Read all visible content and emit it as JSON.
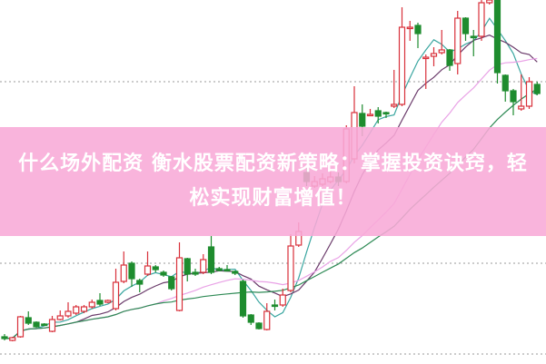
{
  "title": "什么场外配资 衡水股票配资新策略：掌握投资诀窍，轻松实现财富增值！",
  "chart_data": {
    "type": "candlestick",
    "grid": "dotted horizontal",
    "colors": {
      "up": "#d8303a",
      "down": "#1e8c2e",
      "ma5": "#3aa6a0",
      "ma10": "#6a3a6a",
      "ma20": "#e9a2e6",
      "ma30": "#2e8a55"
    },
    "moving_averages": [
      5,
      10,
      20,
      30
    ],
    "ohlc": [
      [
        29,
        27,
        32,
        25
      ],
      [
        25,
        28,
        29,
        24
      ],
      [
        29,
        51,
        52,
        28
      ],
      [
        50,
        44,
        57,
        42
      ],
      [
        45,
        40,
        46,
        39
      ],
      [
        43,
        42,
        44,
        41
      ],
      [
        35,
        48,
        52,
        34
      ],
      [
        48,
        52,
        58,
        47
      ],
      [
        52,
        57,
        67,
        50
      ],
      [
        55,
        62,
        64,
        53
      ],
      [
        57,
        62,
        64,
        55
      ],
      [
        62,
        67,
        70,
        60
      ],
      [
        69,
        65,
        77,
        63
      ],
      [
        67,
        69,
        70,
        66
      ],
      [
        60,
        89,
        104,
        58
      ],
      [
        90,
        108,
        123,
        88
      ],
      [
        110,
        93,
        112,
        84
      ],
      [
        91,
        87,
        93,
        78
      ],
      [
        98,
        107,
        123,
        96
      ],
      [
        106,
        103,
        108,
        100
      ],
      [
        100,
        97,
        102,
        95
      ],
      [
        95,
        82,
        96,
        80
      ],
      [
        58,
        116,
        133,
        57
      ],
      [
        115,
        98,
        116,
        90
      ],
      [
        100,
        98,
        104,
        96
      ],
      [
        100,
        114,
        120,
        98
      ],
      [
        128,
        100,
        140,
        98
      ],
      [
        104,
        102,
        106,
        101
      ],
      [
        103,
        102,
        108,
        101
      ],
      [
        101,
        99,
        102,
        97
      ],
      [
        90,
        52,
        92,
        50
      ],
      [
        53,
        45,
        54,
        42
      ],
      [
        44,
        38,
        45,
        37
      ],
      [
        37,
        57,
        66,
        36
      ],
      [
        64,
        63,
        70,
        58
      ],
      [
        64,
        75,
        82,
        62
      ],
      [
        80,
        129,
        142,
        78
      ],
      [
        130,
        145,
        155,
        128
      ],
      [
        210,
        200,
        215,
        195
      ],
      [
        195,
        200,
        206,
        193
      ],
      [
        197,
        203,
        209,
        195
      ],
      [
        200,
        205,
        212,
        198
      ],
      [
        205,
        200,
        210,
        195
      ],
      [
        200,
        258,
        262,
        198
      ],
      [
        225,
        276,
        305,
        220
      ],
      [
        275,
        261,
        285,
        250
      ],
      [
        273,
        274,
        280,
        272
      ],
      [
        278,
        272,
        282,
        264
      ],
      [
        276,
        275,
        277,
        270
      ],
      [
        283,
        285,
        323,
        281
      ],
      [
        285,
        370,
        392,
        283
      ],
      [
        370,
        370,
        377,
        355
      ],
      [
        372,
        363,
        375,
        347
      ],
      [
        337,
        337,
        340,
        302
      ],
      [
        338,
        341,
        348,
        327
      ],
      [
        342,
        345,
        367,
        340
      ],
      [
        345,
        328,
        346,
        322
      ],
      [
        330,
        380,
        388,
        318
      ],
      [
        380,
        363,
        381,
        355
      ],
      [
        360,
        359,
        367,
        338
      ],
      [
        360,
        397,
        400,
        355
      ],
      [
        397,
        400,
        405,
        395
      ],
      [
        400,
        320,
        402,
        308
      ],
      [
        317,
        300,
        318,
        288
      ],
      [
        300,
        288,
        302,
        273
      ],
      [
        280,
        283,
        318,
        278
      ],
      [
        283,
        310,
        315,
        280
      ],
      [
        307,
        297,
        310,
        295
      ]
    ]
  }
}
